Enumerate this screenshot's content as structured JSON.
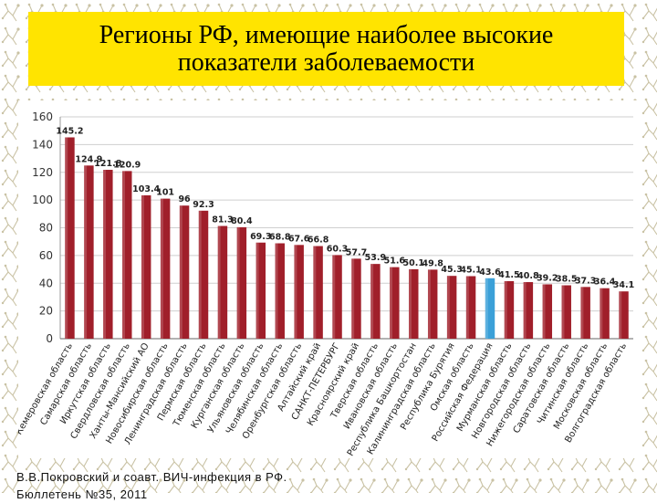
{
  "slide": {
    "title_line1": "Регионы РФ, имеющие наиболее высокие",
    "title_line2": "показатели заболеваемости",
    "footer_line1": "В.В.Покровский и соавт. ВИЧ-инфекция в РФ.",
    "footer_line2": "Бюллетень №35, 2011"
  },
  "colors": {
    "bar": "#a01f2a",
    "highlight": "#3ba0d8",
    "title_bg": "#ffe400"
  },
  "chart_data": {
    "type": "bar",
    "title": "",
    "xlabel": "",
    "ylabel": "",
    "ylim": [
      0,
      160
    ],
    "yticks": [
      0,
      20,
      40,
      60,
      80,
      100,
      120,
      140,
      160
    ],
    "grid": true,
    "categories": [
      "Кемеровская область",
      "Самарская область",
      "Иркутская область",
      "Свердловская область",
      "Ханты-Мансийский АО",
      "Новосибирская область",
      "Ленинградская область",
      "Пермская область",
      "Тюменская область",
      "Курганская область",
      "Ульяновская область",
      "Челябинская область",
      "Оренбургская область",
      "Алтайский край",
      "САНКТ-ПЕТЕРБУРГ",
      "Красноярский край",
      "Тверская область",
      "Ивановская область",
      "Республика Башкортостан",
      "Калининградская область",
      "Республика Бурятия",
      "Омская область",
      "Российская Федерация",
      "Мурманская область",
      "Новгородская область",
      "Нижегородская область",
      "Саратовская область",
      "Читинская область",
      "Московская область",
      "Волгоградская область"
    ],
    "values": [
      145.2,
      124.9,
      121.8,
      120.9,
      103.4,
      101,
      96,
      92.3,
      81.3,
      80.4,
      69.3,
      68.8,
      67.6,
      66.8,
      60.3,
      57.7,
      53.9,
      51.6,
      50.1,
      49.8,
      45.3,
      45.1,
      43.6,
      41.5,
      40.8,
      39.2,
      38.5,
      37.3,
      36.4,
      34.1
    ],
    "value_labels": [
      "145.2",
      "124.9",
      "121.8",
      "120.9",
      "103.4",
      "101",
      "96",
      "92.3",
      "81.3",
      "80.4",
      "69.3",
      "68.8",
      "67.6",
      "66.8",
      "60.3",
      "57.7",
      "53.9",
      "51.6",
      "50.1",
      "49.8",
      "45.3",
      "45.1",
      "43.6",
      "41.5",
      "40.8",
      "39.2",
      "38.5",
      "37.3",
      "36.4",
      "34.1"
    ],
    "highlight_category": "Российская Федерация"
  }
}
